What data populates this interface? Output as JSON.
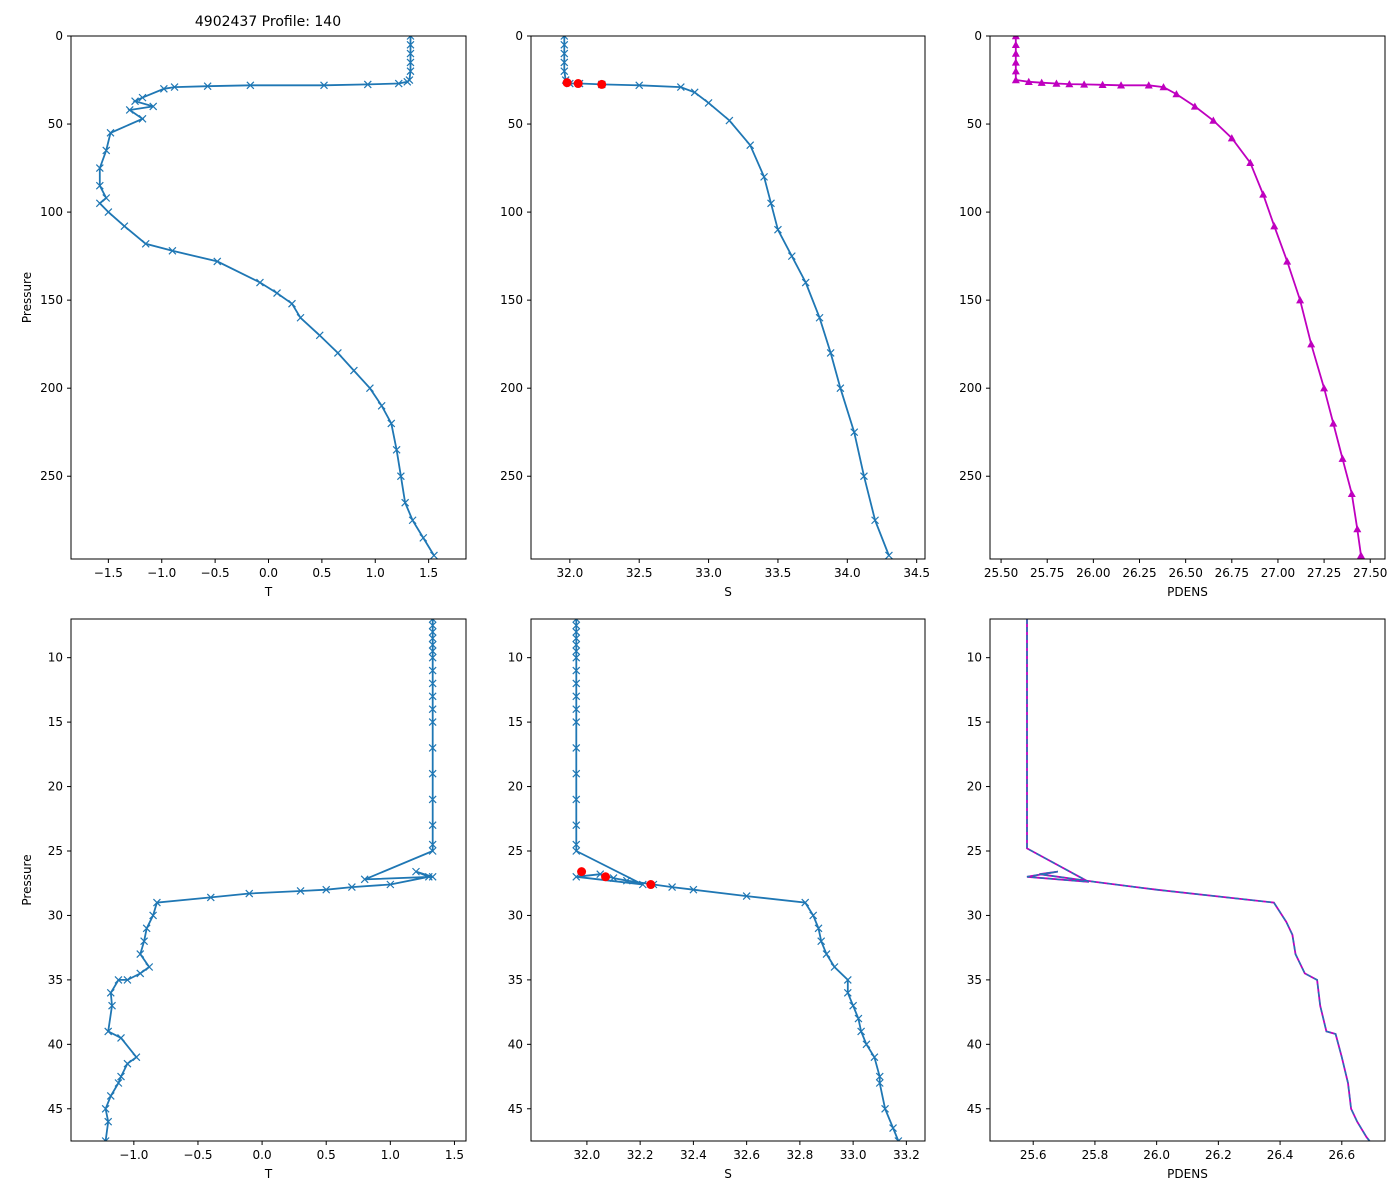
{
  "figure_title": "4902437 Profile: 140",
  "chart_data": [
    {
      "id": "top-t",
      "type": "line",
      "xlabel": "T",
      "ylabel": "Pressure",
      "xlim": [
        -1.85,
        1.85
      ],
      "ylim": [
        297,
        0
      ],
      "xticks": [
        -1.5,
        -1.0,
        -0.5,
        0.0,
        0.5,
        1.0,
        1.5
      ],
      "xticklabels": [
        "−1.5",
        "−1.0",
        "−0.5",
        "0.0",
        "0.5",
        "1.0",
        "1.5"
      ],
      "yticks": [
        0,
        50,
        100,
        150,
        200,
        250
      ],
      "yticklabels": [
        "0",
        "50",
        "100",
        "150",
        "200",
        "250"
      ],
      "series": [
        {
          "name": "T",
          "color": "#1f77b4",
          "marker": "x",
          "dashed": false,
          "x": [
            1.33,
            1.33,
            1.33,
            1.33,
            1.33,
            1.32,
            1.3,
            1.22,
            0.93,
            0.52,
            -0.17,
            -0.57,
            -0.88,
            -0.98,
            -1.18,
            -1.25,
            -1.08,
            -1.3,
            -1.18,
            -1.48,
            -1.52,
            -1.58,
            -1.58,
            -1.52,
            -1.58,
            -1.5,
            -1.35,
            -1.15,
            -0.9,
            -0.48,
            -0.08,
            0.08,
            0.22,
            0.3,
            0.48,
            0.65,
            0.8,
            0.95,
            1.06,
            1.15,
            1.2,
            1.24,
            1.28,
            1.35,
            1.45,
            1.55
          ],
          "y": [
            0,
            5,
            10,
            15,
            20,
            25,
            26,
            27,
            27.5,
            28,
            28,
            28.5,
            29,
            30,
            35,
            37,
            40,
            42,
            47,
            55,
            65,
            75,
            85,
            92,
            95,
            100,
            108,
            118,
            122,
            128,
            140,
            146,
            152,
            160,
            170,
            180,
            190,
            200,
            210,
            220,
            235,
            250,
            265,
            275,
            285,
            295
          ]
        }
      ]
    },
    {
      "id": "top-s",
      "type": "line",
      "xlabel": "S",
      "ylabel": "",
      "xlim": [
        31.72,
        34.56
      ],
      "ylim": [
        297,
        0
      ],
      "xticks": [
        32.0,
        32.5,
        33.0,
        33.5,
        34.0,
        34.5
      ],
      "xticklabels": [
        "32.0",
        "32.5",
        "33.0",
        "33.5",
        "34.0",
        "34.5"
      ],
      "yticks": [
        0,
        50,
        100,
        150,
        200,
        250
      ],
      "yticklabels": [
        "0",
        "50",
        "100",
        "150",
        "200",
        "250"
      ],
      "series": [
        {
          "name": "S",
          "color": "#1f77b4",
          "marker": "x",
          "dashed": false,
          "x": [
            31.96,
            31.96,
            31.96,
            31.96,
            31.96,
            31.97,
            32.0,
            32.07,
            32.23,
            32.5,
            32.8,
            32.9,
            33.0,
            33.15,
            33.3,
            33.4,
            33.45,
            33.5,
            33.6,
            33.7,
            33.8,
            33.88,
            33.95,
            34.05,
            34.12,
            34.2,
            34.3
          ],
          "y": [
            0,
            5,
            10,
            15,
            20,
            25,
            27,
            27,
            27.5,
            28,
            29,
            32,
            38,
            48,
            62,
            80,
            95,
            110,
            125,
            140,
            160,
            180,
            200,
            225,
            250,
            275,
            295
          ]
        },
        {
          "name": "flagged",
          "color": "#ff0000",
          "marker": "dot",
          "line": false,
          "x": [
            31.98,
            32.06,
            32.23
          ],
          "y": [
            26.5,
            27,
            27.5
          ]
        }
      ]
    },
    {
      "id": "top-pdens",
      "type": "line",
      "xlabel": "PDENS",
      "ylabel": "",
      "xlim": [
        25.44,
        27.58
      ],
      "ylim": [
        297,
        0
      ],
      "xticks": [
        25.5,
        25.75,
        26.0,
        26.25,
        26.5,
        26.75,
        27.0,
        27.25,
        27.5
      ],
      "xticklabels": [
        "25.50",
        "25.75",
        "26.00",
        "26.25",
        "26.50",
        "26.75",
        "27.00",
        "27.25",
        "27.50"
      ],
      "yticks": [
        0,
        50,
        100,
        150,
        200,
        250
      ],
      "yticklabels": [
        "0",
        "50",
        "100",
        "150",
        "200",
        "250"
      ],
      "series": [
        {
          "name": "PDENS",
          "color": "#bf00bf",
          "marker": "triangle",
          "dashed": false,
          "x": [
            25.58,
            25.58,
            25.58,
            25.58,
            25.58,
            25.58,
            25.65,
            25.72,
            25.8,
            25.87,
            25.95,
            26.05,
            26.15,
            26.3,
            26.38,
            26.45,
            26.55,
            26.65,
            26.75,
            26.85,
            26.92,
            26.98,
            27.05,
            27.12,
            27.18,
            27.25,
            27.3,
            27.35,
            27.4,
            27.43,
            27.45
          ],
          "y": [
            0,
            5,
            10,
            15,
            20,
            25,
            26,
            26.5,
            27,
            27.3,
            27.5,
            27.7,
            28,
            28,
            29,
            33,
            40,
            48,
            58,
            72,
            90,
            108,
            128,
            150,
            175,
            200,
            220,
            240,
            260,
            280,
            295
          ]
        }
      ]
    },
    {
      "id": "bottom-t",
      "type": "line",
      "xlabel": "T",
      "ylabel": "Pressure",
      "xlim": [
        -1.49,
        1.59
      ],
      "ylim": [
        47.5,
        7
      ],
      "xticks": [
        -1.0,
        -0.5,
        0.0,
        0.5,
        1.0,
        1.5
      ],
      "xticklabels": [
        "−1.0",
        "−0.5",
        "0.0",
        "0.5",
        "1.0",
        "1.5"
      ],
      "yticks": [
        10,
        15,
        20,
        25,
        30,
        35,
        40,
        45
      ],
      "yticklabels": [
        "10",
        "15",
        "20",
        "25",
        "30",
        "35",
        "40",
        "45"
      ],
      "series": [
        {
          "name": "T",
          "color": "#1f77b4",
          "marker": "x",
          "dashed": false,
          "x": [
            1.33,
            1.33,
            1.33,
            1.33,
            1.33,
            1.33,
            1.33,
            1.33,
            1.33,
            1.33,
            1.33,
            1.33,
            1.33,
            1.33,
            1.33,
            1.33,
            1.33,
            1.33,
            0.8,
            1.33,
            1.2,
            1.3,
            1.0,
            0.7,
            0.5,
            0.3,
            -0.1,
            -0.4,
            -0.82,
            -0.85,
            -0.9,
            -0.92,
            -0.95,
            -0.88,
            -0.95,
            -1.05,
            -1.12,
            -1.18,
            -1.17,
            -1.2,
            -1.1,
            -0.98,
            -1.05,
            -1.1,
            -1.12,
            -1.18,
            -1.22,
            -1.2,
            -1.22
          ],
          "y": [
            7,
            7.5,
            8,
            8.5,
            9,
            9.5,
            10,
            11,
            12,
            13,
            14,
            15,
            17,
            19,
            21,
            23,
            24.5,
            25,
            27.2,
            27.0,
            26.6,
            27.0,
            27.6,
            27.8,
            28,
            28.1,
            28.3,
            28.6,
            29,
            30,
            31,
            32,
            33,
            34,
            34.5,
            35,
            35,
            36,
            37,
            39,
            39.5,
            41,
            41.5,
            42.5,
            43,
            44,
            45,
            46,
            47.5
          ]
        }
      ]
    },
    {
      "id": "bottom-s",
      "type": "line",
      "xlabel": "S",
      "ylabel": "",
      "xlim": [
        31.79,
        33.27
      ],
      "ylim": [
        47.5,
        7
      ],
      "xticks": [
        32.0,
        32.2,
        32.4,
        32.6,
        32.8,
        33.0,
        33.2
      ],
      "xticklabels": [
        "32.0",
        "32.2",
        "32.4",
        "32.6",
        "32.8",
        "33.0",
        "33.2"
      ],
      "yticks": [
        10,
        15,
        20,
        25,
        30,
        35,
        40,
        45
      ],
      "yticklabels": [
        "10",
        "15",
        "20",
        "25",
        "30",
        "35",
        "40",
        "45"
      ],
      "series": [
        {
          "name": "S",
          "color": "#1f77b4",
          "marker": "x",
          "dashed": false,
          "x": [
            31.96,
            31.96,
            31.96,
            31.96,
            31.96,
            31.96,
            31.96,
            31.96,
            31.96,
            31.96,
            31.96,
            31.96,
            31.96,
            31.96,
            31.96,
            31.96,
            31.96,
            31.96,
            32.21,
            31.96,
            32.05,
            32.1,
            32.15,
            32.25,
            32.32,
            32.4,
            32.6,
            32.82,
            32.85,
            32.87,
            32.88,
            32.9,
            32.93,
            32.98,
            32.98,
            33.0,
            33.02,
            33.03,
            33.05,
            33.08,
            33.1,
            33.1,
            33.12,
            33.15,
            33.17
          ],
          "y": [
            7,
            7.5,
            8,
            8.5,
            9,
            9.5,
            10,
            11,
            12,
            13,
            14,
            15,
            17,
            19,
            21,
            23,
            24.5,
            25,
            27.6,
            27.0,
            26.8,
            27.1,
            27.3,
            27.6,
            27.8,
            28.0,
            28.5,
            29,
            30,
            31,
            32,
            33,
            34,
            35,
            36,
            37,
            38,
            39,
            40,
            41,
            42.5,
            43,
            45,
            46.5,
            47.5
          ]
        },
        {
          "name": "flagged",
          "color": "#ff0000",
          "marker": "dot",
          "line": false,
          "x": [
            31.98,
            32.07,
            32.24
          ],
          "y": [
            26.6,
            27.0,
            27.6
          ]
        }
      ]
    },
    {
      "id": "bottom-pdens",
      "type": "line",
      "xlabel": "PDENS",
      "ylabel": "",
      "xlim": [
        25.46,
        26.74
      ],
      "ylim": [
        47.5,
        7
      ],
      "xticks": [
        25.6,
        25.8,
        26.0,
        26.2,
        26.4,
        26.6
      ],
      "xticklabels": [
        "25.6",
        "25.8",
        "26.0",
        "26.2",
        "26.4",
        "26.6"
      ],
      "yticks": [
        10,
        15,
        20,
        25,
        30,
        35,
        40,
        45
      ],
      "yticklabels": [
        "10",
        "15",
        "20",
        "25",
        "30",
        "35",
        "40",
        "45"
      ],
      "series": [
        {
          "name": "PDENS",
          "color": "#bf00bf",
          "marker": "none",
          "dashed": false,
          "x": [
            25.58,
            25.58,
            25.78,
            25.58,
            25.68,
            25.62,
            25.8,
            26.0,
            26.38,
            26.42,
            26.44,
            26.45,
            26.48,
            26.52,
            26.53,
            26.55,
            26.58,
            26.6,
            26.62,
            26.63,
            26.65,
            26.68,
            26.69
          ],
          "y": [
            7,
            24.8,
            27.4,
            27.0,
            26.6,
            26.8,
            27.4,
            28.0,
            29.0,
            30.5,
            31.5,
            33,
            34.5,
            35,
            37,
            39,
            39.2,
            41,
            43,
            45,
            46,
            47.2,
            47.5
          ]
        },
        {
          "name": "PDENS dashed",
          "color": "#1f77b4",
          "marker": "none",
          "dashed": true,
          "x": [
            25.58,
            25.58,
            25.78,
            25.58,
            25.68,
            25.62,
            25.8,
            26.0,
            26.38,
            26.42,
            26.44,
            26.45,
            26.48,
            26.52,
            26.53,
            26.55,
            26.58,
            26.6,
            26.62,
            26.63,
            26.65,
            26.68,
            26.69
          ],
          "y": [
            7,
            24.8,
            27.4,
            27.0,
            26.6,
            26.8,
            27.4,
            28.0,
            29.0,
            30.5,
            31.5,
            33,
            34.5,
            35,
            37,
            39,
            39.2,
            41,
            43,
            45,
            46,
            47.2,
            47.5
          ]
        }
      ]
    }
  ]
}
